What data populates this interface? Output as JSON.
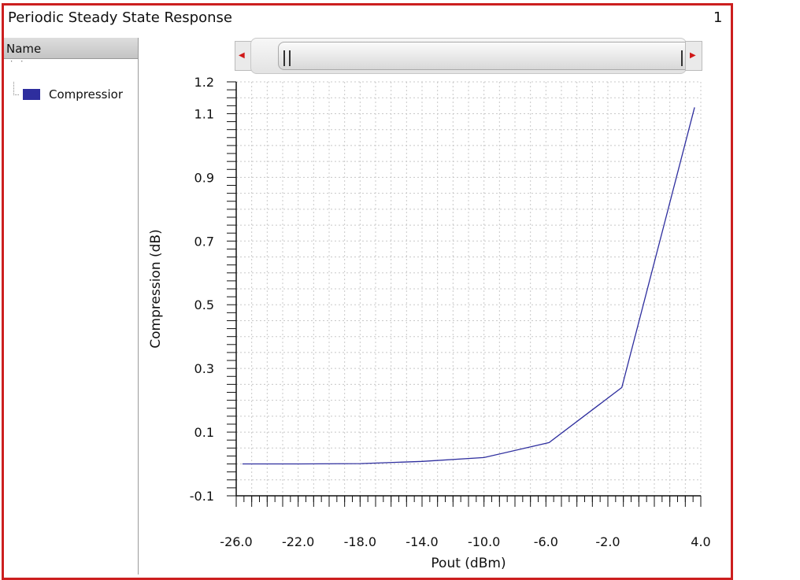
{
  "window": {
    "title": "Periodic Steady State Response",
    "number": "1"
  },
  "legend": {
    "header": "Name",
    "clipped_text": "' ' ' ' ' ' ' ' ' ' ' ' '",
    "items": [
      {
        "label": "Compressior",
        "color": "#2e2e9e"
      }
    ]
  },
  "scrollbar": {
    "left_arrow_icon": "left-triangle-icon",
    "right_arrow_icon": "right-triangle-icon"
  },
  "chart_data": {
    "type": "line",
    "title": "",
    "xlabel": "Pout (dBm)",
    "ylabel": "Compression (dB)",
    "xlim": [
      -26.0,
      4.0
    ],
    "ylim": [
      -0.1,
      1.2
    ],
    "xticks": [
      "-26.0",
      "-22.0",
      "-18.0",
      "-14.0",
      "-10.0",
      "-6.0",
      "-2.0",
      "4.0"
    ],
    "xtick_values": [
      -26.0,
      -22.0,
      -18.0,
      -14.0,
      -10.0,
      -6.0,
      -2.0,
      4.0
    ],
    "yticks": [
      "1.2",
      "1.1",
      "0.9",
      "0.7",
      "0.5",
      "0.3",
      "0.1",
      "-0.1"
    ],
    "ytick_values": [
      1.2,
      1.1,
      0.9,
      0.7,
      0.5,
      0.3,
      0.1,
      -0.1
    ],
    "grid": true,
    "series": [
      {
        "name": "Compressior",
        "color": "#2e2e9e",
        "x": [
          -25.6,
          -22.0,
          -18.0,
          -14.0,
          -10.0,
          -5.8,
          -1.1,
          3.6
        ],
        "y": [
          0.0,
          0.0,
          0.001,
          0.008,
          0.02,
          0.067,
          0.24,
          1.12
        ]
      }
    ]
  }
}
